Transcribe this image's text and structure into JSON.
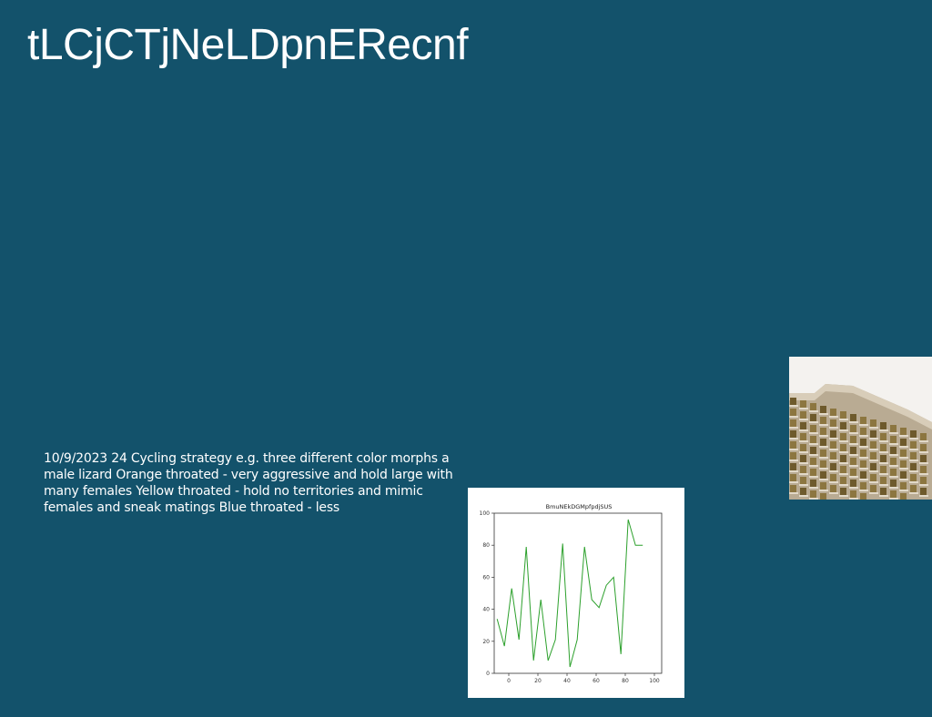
{
  "slide": {
    "title": "tLCjCTjNeLDpnERecnf",
    "body_text": "10/9/2023 24 Cycling strategy e.g. three different color morphs a male lizard Orange throated - very aggressive and hold large with many females Yellow throated - hold no territories and mimic females and sneak matings Blue throated - less",
    "background_color": "#13526b",
    "image_icon": "building-photo-icon"
  },
  "chart_data": {
    "type": "line",
    "title": "BmuNEkDGMpfpdjSUS",
    "xlabel": "",
    "ylabel": "",
    "xlim": [
      -10,
      105
    ],
    "ylim": [
      0,
      100
    ],
    "xticks": [
      0,
      20,
      40,
      60,
      80,
      100
    ],
    "yticks": [
      0,
      20,
      40,
      60,
      80,
      100
    ],
    "grid": false,
    "series": [
      {
        "color": "#2ca02c",
        "x": [
          -8,
          -3,
          2,
          7,
          12,
          17,
          22,
          27,
          32,
          37,
          42,
          47,
          52,
          57,
          62,
          67,
          72,
          77,
          82,
          87,
          92
        ],
        "y": [
          34,
          17,
          53,
          21,
          79,
          8,
          46,
          8,
          21,
          81,
          4,
          21,
          79,
          46,
          41,
          55,
          60,
          12,
          96,
          80,
          80
        ]
      }
    ]
  }
}
